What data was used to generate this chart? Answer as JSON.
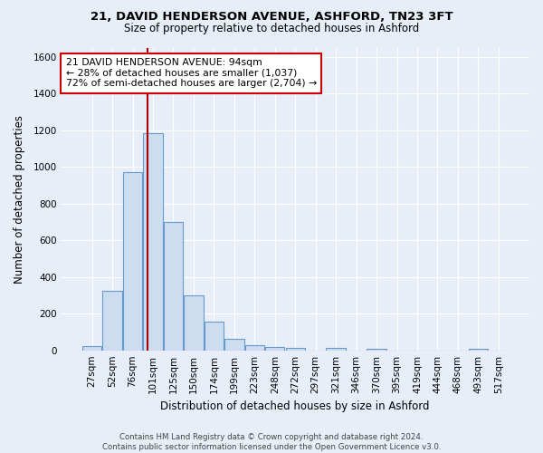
{
  "title1": "21, DAVID HENDERSON AVENUE, ASHFORD, TN23 3FT",
  "title2": "Size of property relative to detached houses in Ashford",
  "xlabel": "Distribution of detached houses by size in Ashford",
  "ylabel": "Number of detached properties",
  "categories": [
    "27sqm",
    "52sqm",
    "76sqm",
    "101sqm",
    "125sqm",
    "150sqm",
    "174sqm",
    "199sqm",
    "223sqm",
    "248sqm",
    "272sqm",
    "297sqm",
    "321sqm",
    "346sqm",
    "370sqm",
    "395sqm",
    "419sqm",
    "444sqm",
    "468sqm",
    "493sqm",
    "517sqm"
  ],
  "values": [
    25,
    325,
    970,
    1185,
    700,
    300,
    155,
    65,
    30,
    20,
    15,
    0,
    12,
    0,
    10,
    0,
    0,
    0,
    0,
    10,
    0
  ],
  "bar_color": "#ccddf0",
  "bar_edge_color": "#6699cc",
  "vline_x": 2.72,
  "vline_color": "#aa0000",
  "annotation_text": "21 DAVID HENDERSON AVENUE: 94sqm\n← 28% of detached houses are smaller (1,037)\n72% of semi-detached houses are larger (2,704) →",
  "annotation_box_color": "white",
  "annotation_box_edge": "#cc0000",
  "ylim": [
    0,
    1650
  ],
  "yticks": [
    0,
    200,
    400,
    600,
    800,
    1000,
    1200,
    1400,
    1600
  ],
  "footer": "Contains HM Land Registry data © Crown copyright and database right 2024.\nContains public sector information licensed under the Open Government Licence v3.0.",
  "bg_color": "#e8eef8",
  "plot_bg_color": "#e8eef8",
  "title1_fontsize": 9.5,
  "title2_fontsize": 8.5,
  "xlabel_fontsize": 8.5,
  "ylabel_fontsize": 8.5,
  "tick_fontsize": 7.5,
  "annot_fontsize": 7.8,
  "footer_fontsize": 6.2
}
